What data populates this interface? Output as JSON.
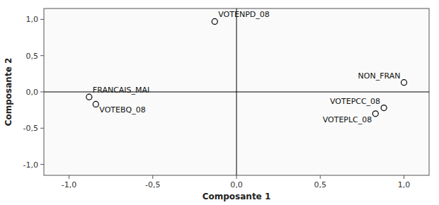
{
  "chart_data": {
    "type": "scatter",
    "xlabel": "Composante 1",
    "ylabel": "Composante 2",
    "labels": [
      "VOTENPD_08",
      "NON_FRAN",
      "FRANCAIS_MAI",
      "VOTEBQ_08",
      "VOTEPCC_08",
      "VOTEPLC_08"
    ],
    "x": [
      -0.13,
      1.0,
      -0.88,
      -0.84,
      0.88,
      0.83
    ],
    "y": [
      0.97,
      0.13,
      -0.07,
      -0.17,
      -0.22,
      -0.3
    ],
    "xlim": [
      -1.15,
      1.15
    ],
    "ylim": [
      -1.15,
      1.15
    ],
    "xticks": [
      {
        "value": -1.0,
        "label": "-1,0"
      },
      {
        "value": -0.5,
        "label": "-0,5"
      },
      {
        "value": 0.0,
        "label": "0,0"
      },
      {
        "value": 0.5,
        "label": "0,5"
      },
      {
        "value": 1.0,
        "label": "1,0"
      }
    ],
    "yticks": [
      {
        "value": -1.0,
        "label": "-1,0"
      },
      {
        "value": -0.5,
        "label": "-0,5"
      },
      {
        "value": 0.0,
        "label": "0,0"
      },
      {
        "value": 0.5,
        "label": "0,5"
      },
      {
        "value": 1.0,
        "label": "1,0"
      }
    ],
    "color": "black",
    "marker": "open-circle"
  }
}
